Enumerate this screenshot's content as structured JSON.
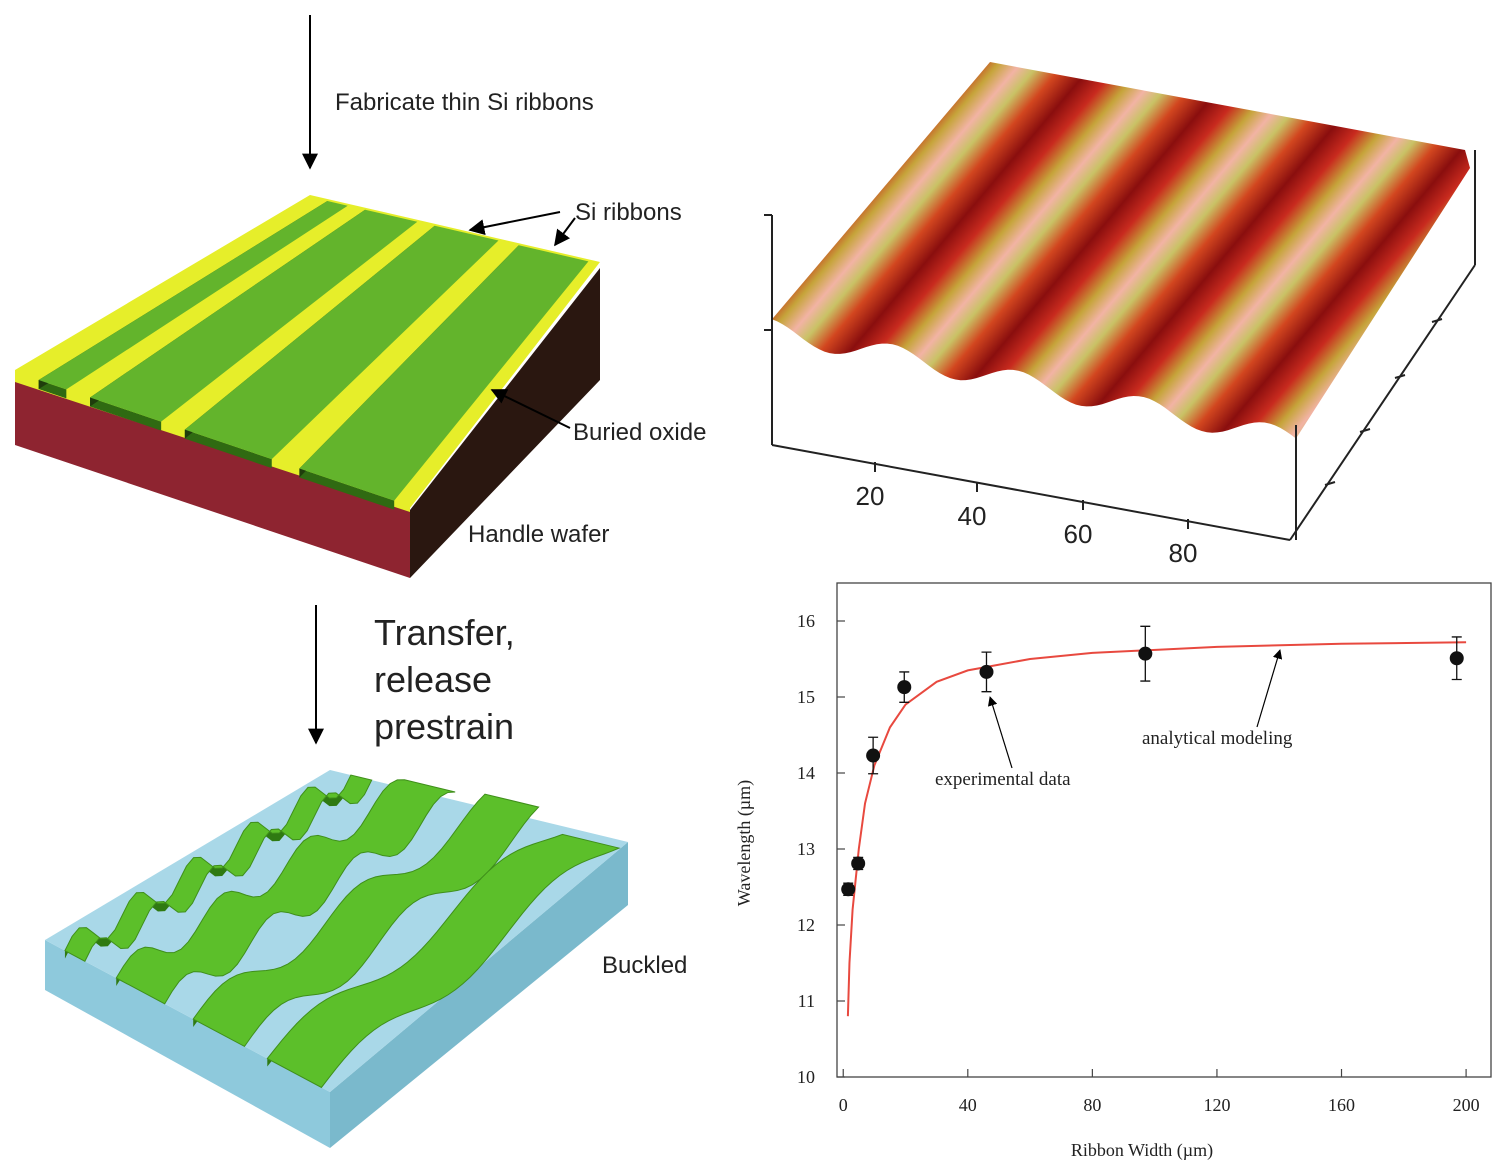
{
  "diagram": {
    "step1": "Fabricate thin Si ribbons",
    "ribbons_label": "Si ribbons",
    "oxide_label": "Buried oxide",
    "wafer_label": "Handle wafer",
    "step2": [
      "Transfer,",
      "release",
      "prestrain"
    ],
    "result_label": "Buckled"
  },
  "surface_plot": {
    "x_ticks": [
      20,
      40,
      60,
      80
    ]
  },
  "chart_data": {
    "type": "scatter",
    "x_label": "Ribbon Width (µm)",
    "y_label": "Wavelength (µm)",
    "xlim": [
      -2,
      208
    ],
    "ylim": [
      10,
      16.5
    ],
    "xticks": [
      0,
      40,
      80,
      120,
      160,
      200
    ],
    "yticks": [
      10,
      11,
      12,
      13,
      14,
      15,
      16
    ],
    "series": [
      {
        "name": "experimental data",
        "type": "scatter",
        "color": "#111111",
        "x": [
          1.6,
          4.8,
          9.6,
          19.6,
          46,
          97,
          197
        ],
        "values": [
          12.47,
          12.81,
          14.23,
          15.13,
          15.33,
          15.57,
          15.51
        ],
        "errors": [
          0.08,
          0.08,
          0.24,
          0.2,
          0.26,
          0.36,
          0.28
        ]
      },
      {
        "name": "analytical modeling",
        "type": "line",
        "color": "#e8493f",
        "x": [
          1.5,
          2,
          3,
          5,
          7,
          10,
          15,
          20,
          30,
          40,
          60,
          80,
          120,
          160,
          200
        ],
        "values": [
          10.8,
          11.5,
          12.2,
          13.0,
          13.6,
          14.1,
          14.6,
          14.9,
          15.2,
          15.35,
          15.5,
          15.58,
          15.66,
          15.7,
          15.72
        ]
      }
    ]
  }
}
